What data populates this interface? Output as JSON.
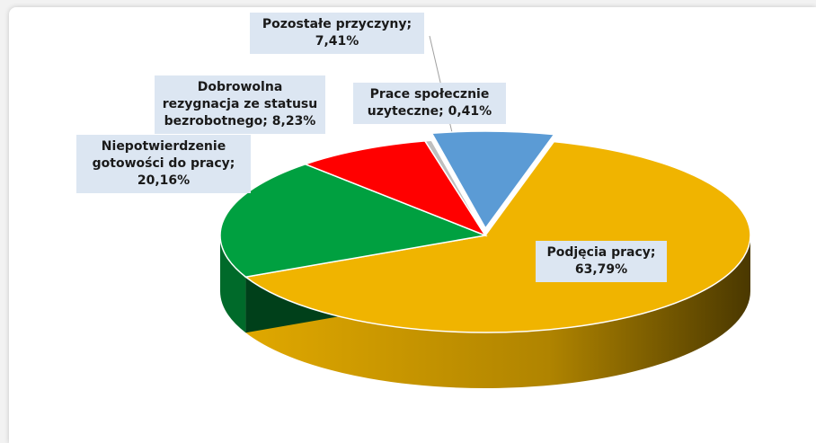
{
  "chart_data": {
    "type": "pie3d",
    "categories": [
      "Podjęcia pracy",
      "Niepotwierdzenie gotowości do pracy",
      "Dobrowolna rezygnacja ze statusu bezrobotnego",
      "Prace społecznie uzyteczne",
      "Pozostałe przyczyny"
    ],
    "values": [
      63.79,
      20.16,
      8.23,
      0.41,
      7.41
    ],
    "value_labels": [
      "63,79%",
      "20,16%",
      "8,23%",
      "0,41%",
      "7,41%"
    ],
    "label_separator": "; ",
    "colors": [
      "#f0b400",
      "#00a040",
      "#ff0000",
      "#bfbfbf",
      "#5b9bd5"
    ],
    "side_colors": [
      "#8a6a00",
      "#006a2a",
      "#a00000",
      "#808080",
      "#3a6fa0"
    ]
  }
}
